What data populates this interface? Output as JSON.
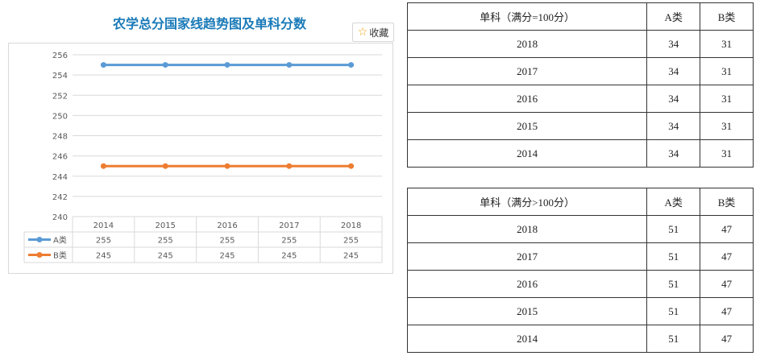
{
  "chart_data": {
    "type": "line",
    "title": "农学总分国家线趋势图及单科分数",
    "categories": [
      "2014",
      "2015",
      "2016",
      "2017",
      "2018"
    ],
    "series": [
      {
        "name": "A类",
        "values": [
          255,
          255,
          255,
          255,
          255
        ],
        "color": "#5b9bd5"
      },
      {
        "name": "B类",
        "values": [
          245,
          245,
          245,
          245,
          245
        ],
        "color": "#ed7d31"
      }
    ],
    "ylim": [
      240,
      256
    ],
    "yticks": [
      240,
      242,
      244,
      246,
      248,
      250,
      252,
      254,
      256
    ],
    "grid": true,
    "legend": "data-table-left"
  },
  "favorite_label": "收藏",
  "tables": [
    {
      "header": [
        "单科（满分=100分）",
        "A类",
        "B类"
      ],
      "rows": [
        [
          "2018",
          "34",
          "31"
        ],
        [
          "2017",
          "34",
          "31"
        ],
        [
          "2016",
          "34",
          "31"
        ],
        [
          "2015",
          "34",
          "31"
        ],
        [
          "2014",
          "34",
          "31"
        ]
      ]
    },
    {
      "header": [
        "单科（满分>100分）",
        "A类",
        "B类"
      ],
      "rows": [
        [
          "2018",
          "51",
          "47"
        ],
        [
          "2017",
          "51",
          "47"
        ],
        [
          "2016",
          "51",
          "47"
        ],
        [
          "2015",
          "51",
          "47"
        ],
        [
          "2014",
          "51",
          "47"
        ]
      ]
    }
  ]
}
